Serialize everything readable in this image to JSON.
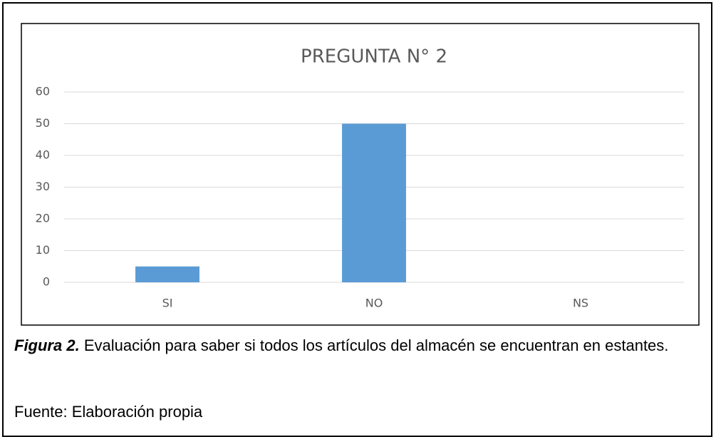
{
  "chart_data": {
    "type": "bar",
    "title": "PREGUNTA N° 2",
    "categories": [
      "SI",
      "NO",
      "NS"
    ],
    "values": [
      5,
      50,
      0
    ],
    "color": "#5b9bd5",
    "ylim": [
      0,
      60
    ],
    "yticks": [
      0,
      10,
      20,
      30,
      40,
      50,
      60
    ],
    "grid": true
  },
  "caption": {
    "label": "Figura 2.",
    "text": "Evaluación para saber si todos los artículos del almacén se encuentran en estantes.",
    "source": "Fuente: Elaboración propia"
  }
}
